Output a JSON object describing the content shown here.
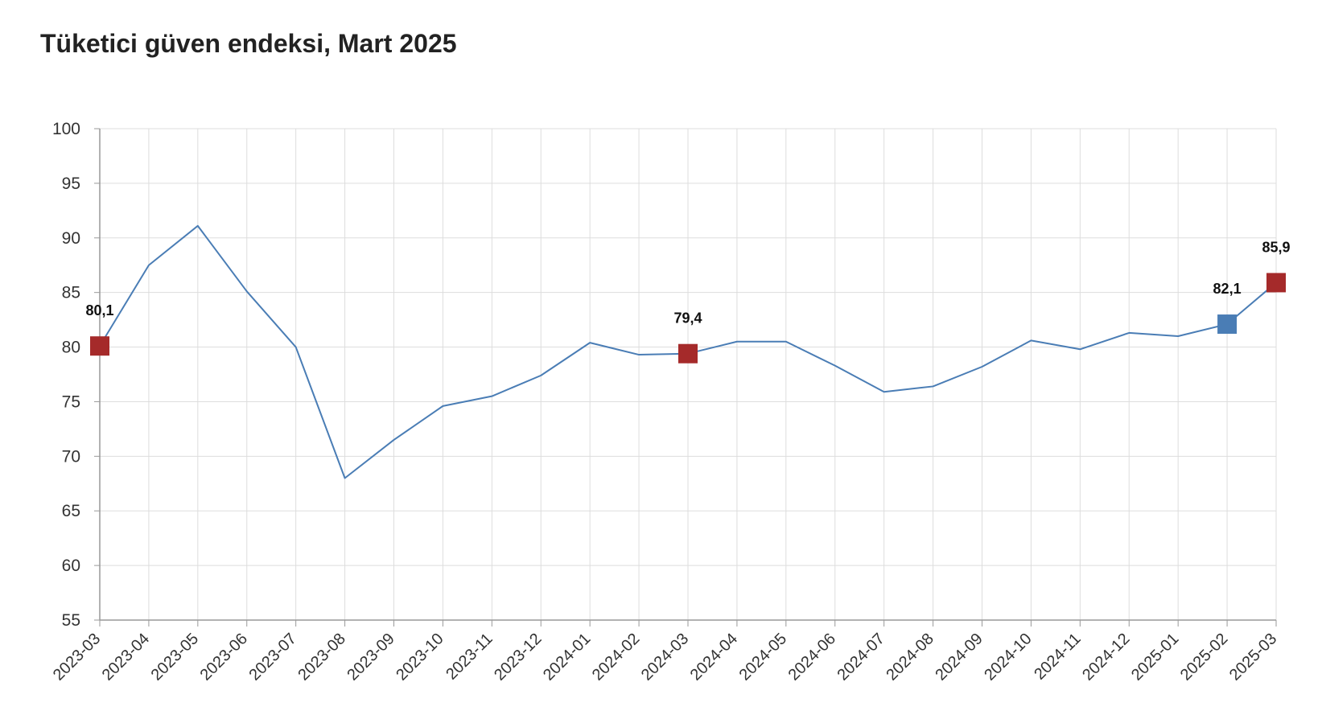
{
  "chart_data": {
    "type": "line",
    "title": "Tüketici güven endeksi, Mart 2025",
    "xlabel": "",
    "ylabel": "",
    "categories": [
      "2023-03",
      "2023-04",
      "2023-05",
      "2023-06",
      "2023-07",
      "2023-08",
      "2023-09",
      "2023-10",
      "2023-11",
      "2023-12",
      "2024-01",
      "2024-02",
      "2024-03",
      "2024-04",
      "2024-05",
      "2024-06",
      "2024-07",
      "2024-08",
      "2024-09",
      "2024-10",
      "2024-11",
      "2024-12",
      "2025-01",
      "2025-02",
      "2025-03"
    ],
    "series": [
      {
        "values": [
          80.1,
          87.5,
          91.1,
          85.1,
          80.0,
          68.0,
          71.5,
          74.6,
          75.5,
          77.4,
          80.4,
          79.3,
          79.4,
          80.5,
          80.5,
          78.3,
          75.9,
          76.4,
          78.2,
          80.6,
          79.8,
          81.3,
          81.0,
          82.1,
          85.9
        ],
        "color": "#4a7db5"
      }
    ],
    "ylim": [
      55,
      100
    ],
    "yticks": [
      55,
      60,
      65,
      70,
      75,
      80,
      85,
      90,
      95,
      100
    ],
    "grid": true,
    "legend": "none",
    "highlights": [
      {
        "category": "2023-03",
        "value": 80.1,
        "label": "80,1",
        "color": "#a52a2a"
      },
      {
        "category": "2024-03",
        "value": 79.4,
        "label": "79,4",
        "color": "#a52a2a"
      },
      {
        "category": "2025-02",
        "value": 82.1,
        "label": "82,1",
        "color": "#4a7db5"
      },
      {
        "category": "2025-03",
        "value": 85.9,
        "label": "85,9",
        "color": "#a52a2a"
      }
    ],
    "colors": {
      "line": "#4a7db5",
      "grid": "#dddddd",
      "axis": "#999999"
    }
  }
}
